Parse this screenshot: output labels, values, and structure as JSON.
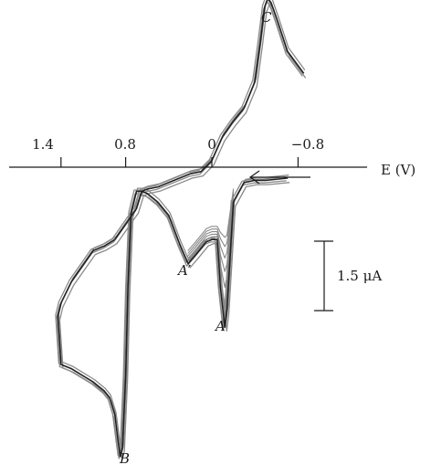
{
  "chart_data": {
    "type": "line",
    "title": "",
    "xlabel": "E (V)",
    "ylabel": "",
    "x_reversed": true,
    "xlim": [
      1.5,
      -0.85
    ],
    "xticks": [
      {
        "value": 1.4,
        "label": "1.4"
      },
      {
        "value": 0.8,
        "label": "0.8"
      },
      {
        "value": 0,
        "label": "0"
      },
      {
        "value": -0.8,
        "label": "−0.8"
      }
    ],
    "ylim": [
      -13.5,
      7.8
    ],
    "y_unit": "μA",
    "y_axis_shown": false,
    "grid": false,
    "scale_bar": {
      "value": 1.5,
      "label": "1.5 μA"
    },
    "sweep_direction": "cathodic-to-anodic (arrow pointing toward positive potentials)",
    "peaks": [
      {
        "label": "C",
        "x": -0.54,
        "y": 7.0
      },
      {
        "label": "A′",
        "x": 0.22,
        "y": -4.3
      },
      {
        "label": "A",
        "x": -0.08,
        "y": -7.1
      },
      {
        "label": "B",
        "x": 0.85,
        "y": -12.6
      }
    ],
    "series": [
      {
        "role": "base",
        "x": [
          -0.85,
          -0.7,
          -0.6,
          -0.55,
          -0.52,
          -0.49,
          -0.45,
          -0.4,
          -0.3,
          -0.2,
          -0.1,
          0,
          0.1,
          0.2,
          0.3,
          0.4,
          0.5,
          0.6,
          0.65,
          0.7,
          0.8,
          0.9,
          1.0,
          1.1,
          1.2,
          1.3,
          1.4,
          1.43,
          1.4,
          1.3,
          1.2,
          1.1,
          1.0,
          0.95,
          0.9,
          0.87,
          0.85,
          0.83,
          0.8,
          0.78,
          0.75,
          0.7,
          0.65,
          0.6,
          0.5,
          0.4,
          0.3,
          0.22,
          0.15,
          0.05,
          0,
          -0.05,
          -0.08,
          -0.12,
          -0.14,
          -0.2,
          -0.3,
          -0.4,
          -0.5,
          -0.7
        ],
        "y": [
          4.3,
          5.3,
          6.8,
          7.5,
          7.7,
          7.3,
          5.7,
          3.9,
          2.7,
          2.1,
          1.4,
          0.3,
          -0.2,
          -0.3,
          -0.5,
          -0.7,
          -0.9,
          -1.0,
          -1.1,
          -1.9,
          -2.6,
          -3.3,
          -3.6,
          -3.8,
          -4.5,
          -5.2,
          -6.2,
          -6.8,
          -9.0,
          -9.2,
          -9.5,
          -9.8,
          -10.2,
          -10.5,
          -11.3,
          -12.5,
          -13.2,
          -12.8,
          -9.5,
          -5.6,
          -2.1,
          -1.1,
          -1.1,
          -1.2,
          -1.6,
          -2.2,
          -3.5,
          -4.4,
          -4.0,
          -3.4,
          -3.3,
          -3.3,
          -5.5,
          -7.3,
          -6.5,
          -1.6,
          -0.7,
          -0.6,
          -0.6,
          -0.5
        ]
      },
      {
        "role": "intermediate cycles",
        "description": "repeated scans between A′ and A with decreasing A peak current",
        "a_peak_depths": [
          -6.3,
          -5.6,
          -5.0,
          -4.5,
          -4.1,
          -3.8
        ]
      }
    ]
  },
  "figure_text": {
    "peak_c": "C",
    "peak_a_prime": "A′",
    "peak_a": "A",
    "peak_b": "B",
    "axis_label": "E (V)",
    "scale_label": "1.5 μA",
    "tick_1": "1.4",
    "tick_2": "0.8",
    "tick_3": "0",
    "tick_4": "−0.8"
  },
  "colors": {
    "ink": "#1a1a1a",
    "curve_dark": "#222222",
    "curve_light": "#8a8a8a",
    "background": "#ffffff"
  }
}
